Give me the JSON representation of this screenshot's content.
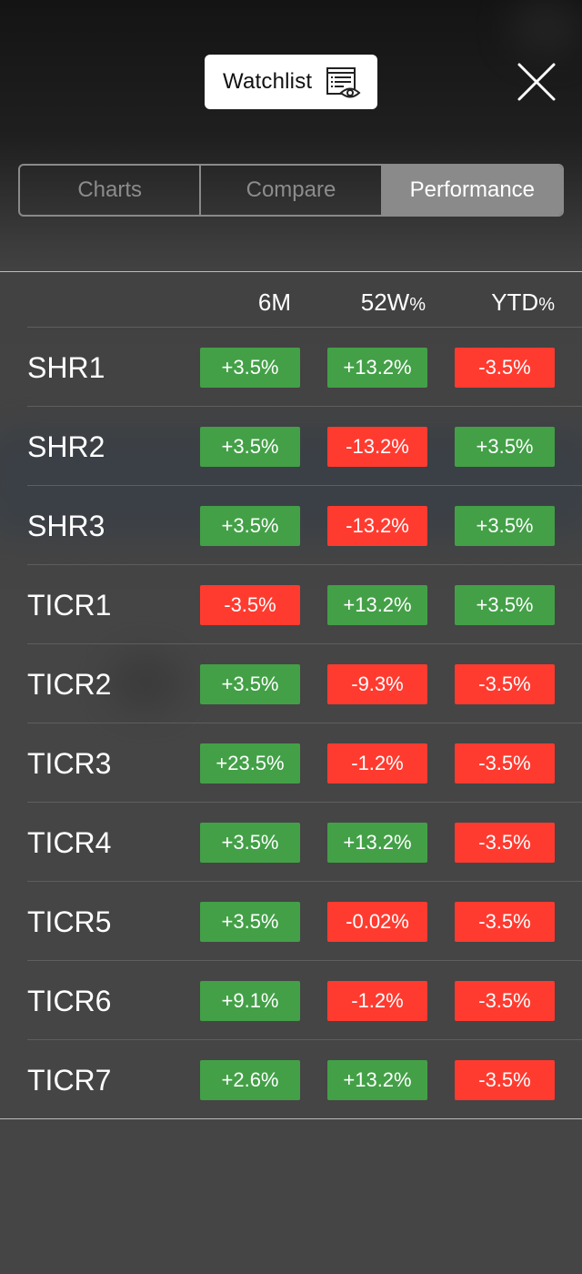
{
  "header": {
    "watchlist_label": "Watchlist",
    "watchlist_icon": "watchlist-eye-icon",
    "close_icon": "close-icon"
  },
  "tabs": [
    {
      "label": "Charts",
      "active": false
    },
    {
      "label": "Compare",
      "active": false
    },
    {
      "label": "Performance",
      "active": true
    }
  ],
  "table": {
    "columns": [
      {
        "label": "6M",
        "suffix": ""
      },
      {
        "label": "52W",
        "suffix": "%"
      },
      {
        "label": "YTD",
        "suffix": "%"
      }
    ],
    "rows": [
      {
        "ticker": "SHR1",
        "values": [
          "+3.5%",
          "+13.2%",
          "-3.5%"
        ]
      },
      {
        "ticker": "SHR2",
        "values": [
          "+3.5%",
          "-13.2%",
          "+3.5%"
        ]
      },
      {
        "ticker": "SHR3",
        "values": [
          "+3.5%",
          "-13.2%",
          "+3.5%"
        ]
      },
      {
        "ticker": "TICR1",
        "values": [
          "-3.5%",
          "+13.2%",
          "+3.5%"
        ]
      },
      {
        "ticker": "TICR2",
        "values": [
          "+3.5%",
          "-9.3%",
          "-3.5%"
        ]
      },
      {
        "ticker": "TICR3",
        "values": [
          "+23.5%",
          "-1.2%",
          "-3.5%"
        ]
      },
      {
        "ticker": "TICR4",
        "values": [
          "+3.5%",
          "+13.2%",
          "-3.5%"
        ]
      },
      {
        "ticker": "TICR5",
        "values": [
          "+3.5%",
          "-0.02%",
          "-3.5%"
        ]
      },
      {
        "ticker": "TICR6",
        "values": [
          "+9.1%",
          "-1.2%",
          "-3.5%"
        ]
      },
      {
        "ticker": "TICR7",
        "values": [
          "+2.6%",
          "+13.2%",
          "-3.5%"
        ]
      }
    ]
  },
  "colors": {
    "positive": "#43a047",
    "negative": "#ff3b30",
    "tab_active_bg": "#8a8a8a"
  }
}
